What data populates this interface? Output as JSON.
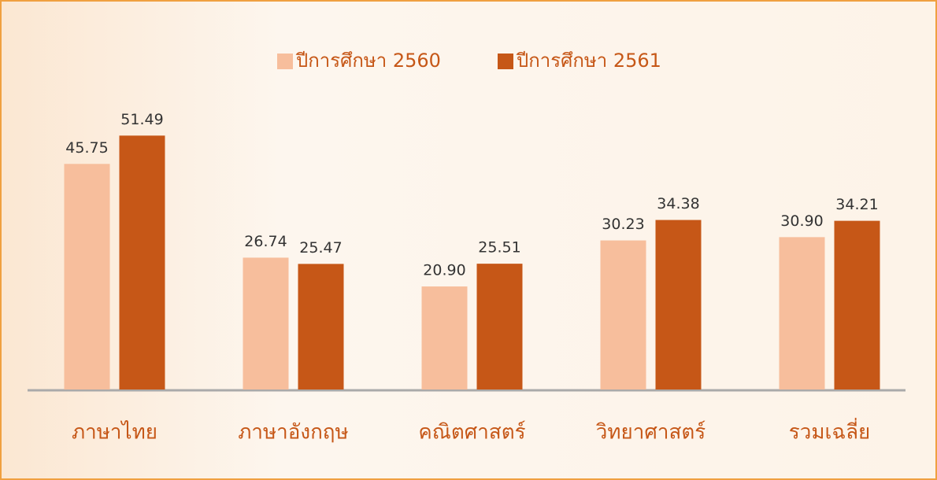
{
  "chart_data": {
    "type": "bar",
    "categories": [
      "ภาษาไทย",
      "ภาษาอังกฤษ",
      "คณิตศาสตร์",
      "วิทยาศาสตร์",
      "รวมเฉลี่ย"
    ],
    "series": [
      {
        "name": "ปีการศึกษา 2560",
        "color": "#f7be9c",
        "values": [
          45.75,
          26.74,
          20.9,
          30.23,
          30.9
        ],
        "value_labels": [
          "45.75",
          "26.74",
          "20.90",
          "30.23",
          "30.90"
        ]
      },
      {
        "name": "ปีการศึกษา 2561",
        "color": "#c65717",
        "values": [
          51.49,
          25.47,
          25.51,
          34.38,
          34.21
        ],
        "value_labels": [
          "51.49",
          "25.47",
          "25.51",
          "34.38",
          "34.21"
        ]
      }
    ],
    "ylim": [
      0,
      60
    ]
  }
}
